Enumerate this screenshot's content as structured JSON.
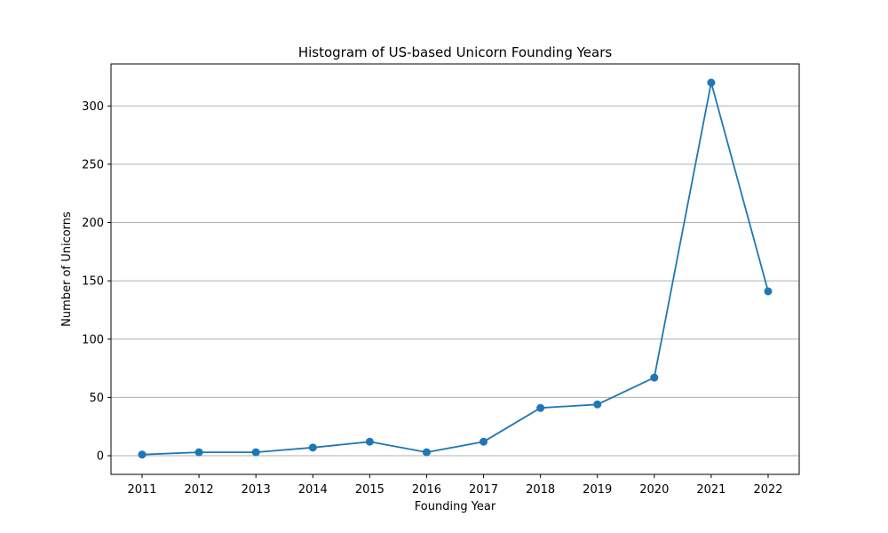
{
  "chart_data": {
    "type": "line",
    "title": "Histogram of US-based Unicorn Founding Years",
    "xlabel": "Founding Year",
    "ylabel": "Number of Unicorns",
    "x": [
      "2011",
      "2012",
      "2013",
      "2014",
      "2015",
      "2016",
      "2017",
      "2018",
      "2019",
      "2020",
      "2021",
      "2022"
    ],
    "series": [
      {
        "values": [
          1,
          3,
          3,
          7,
          12,
          3,
          12,
          41,
          44,
          67,
          320,
          141
        ],
        "color": "#1f77b4"
      }
    ],
    "ylim": [
      -16,
      336
    ],
    "yticks": [
      0,
      50,
      100,
      150,
      200,
      250,
      300
    ],
    "grid": "y-axis only",
    "legend": "none",
    "marker": "circle"
  }
}
